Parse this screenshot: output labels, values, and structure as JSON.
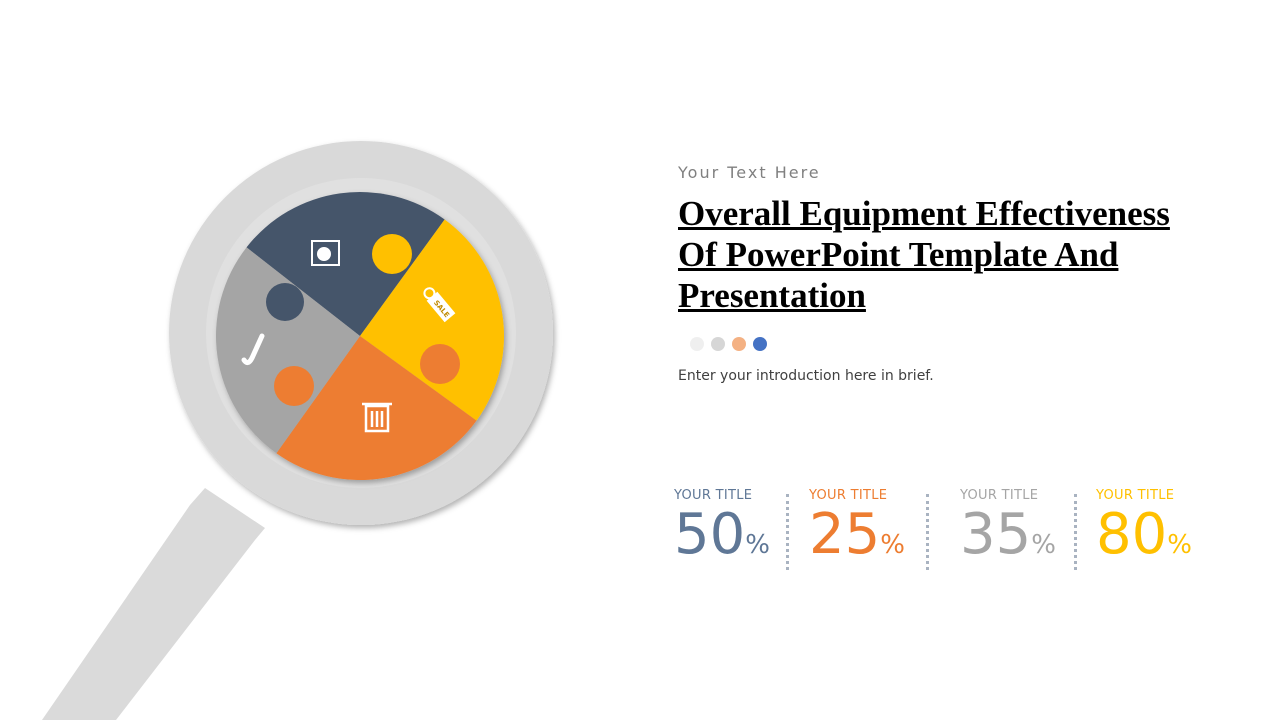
{
  "subtitle": "Your Text Here",
  "title": "Overall Equipment Effectiveness Of PowerPoint Template And Presentation",
  "intro": "Enter your introduction  here in brief.",
  "dots": [
    "#efefef",
    "#d6d6d6",
    "#f4b183",
    "#4472c4"
  ],
  "puzzle": {
    "pieces": [
      {
        "color": "#44546a",
        "icon": "presentation-chart-icon"
      },
      {
        "color": "#ffc000",
        "icon": "sale-tag-icon",
        "tag_text": "SALE"
      },
      {
        "color": "#ed7d31",
        "icon": "trash-icon"
      },
      {
        "color": "#a5a5a5",
        "icon": "saxophone-icon"
      }
    ]
  },
  "stats": [
    {
      "label": "YOUR TITLE",
      "value": "50",
      "unit": "%",
      "color": "#5f7796"
    },
    {
      "label": "YOUR TITLE",
      "value": "25",
      "unit": "%",
      "color": "#ed7d31"
    },
    {
      "label": "YOUR TITLE",
      "value": "35",
      "unit": "%",
      "color": "#a5a5a5"
    },
    {
      "label": "YOUR TITLE",
      "value": "80",
      "unit": "%",
      "color": "#ffc000"
    }
  ]
}
